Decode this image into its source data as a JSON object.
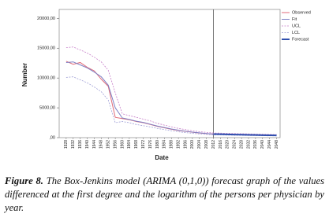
{
  "chart_data": {
    "type": "line",
    "x_label": "Date",
    "y_label": "Number",
    "x": [
      1928,
      1932,
      1936,
      1940,
      1944,
      1948,
      1952,
      1956,
      1960,
      1964,
      1968,
      1972,
      1976,
      1980,
      1984,
      1988,
      1992,
      1996,
      2000,
      2004,
      2008,
      2012,
      2016,
      2020,
      2024,
      2028,
      2032,
      2036,
      2040,
      2044,
      2048
    ],
    "series": [
      {
        "name": "Observed",
        "color": "#e06a78",
        "width": 1,
        "style": "solid",
        "values": [
          12800,
          12300,
          12600,
          11800,
          11200,
          9800,
          8600,
          3400,
          3200,
          3000,
          2700,
          2500,
          2200,
          1900,
          1650,
          1400,
          1200,
          1050,
          900,
          780,
          680,
          600,
          null,
          null,
          null,
          null,
          null,
          null,
          null,
          null,
          null
        ]
      },
      {
        "name": "Fit",
        "color": "#7d7fc4",
        "width": 1,
        "style": "solid",
        "values": [
          12600,
          12700,
          12200,
          11700,
          11000,
          10200,
          8800,
          5000,
          3300,
          3050,
          2750,
          2550,
          2250,
          1950,
          1700,
          1450,
          1250,
          1080,
          920,
          800,
          700,
          610,
          null,
          null,
          null,
          null,
          null,
          null,
          null,
          null,
          null
        ]
      },
      {
        "name": "UCL",
        "color": "#c77fc9",
        "width": 0.8,
        "style": "dashed",
        "values": [
          15100,
          15200,
          14700,
          14200,
          13500,
          12700,
          11300,
          7500,
          4000,
          3700,
          3400,
          3100,
          2800,
          2400,
          2100,
          1800,
          1550,
          1350,
          1150,
          1000,
          880,
          780,
          760,
          720,
          690,
          660,
          630,
          600,
          570,
          540,
          520
        ]
      },
      {
        "name": "LCL",
        "color": "#9f9fd6",
        "width": 0.8,
        "style": "dashed",
        "values": [
          10100,
          10200,
          9700,
          9200,
          8500,
          7700,
          6300,
          2500,
          2700,
          2500,
          2200,
          2000,
          1800,
          1550,
          1350,
          1150,
          980,
          850,
          720,
          620,
          540,
          470,
          450,
          420,
          400,
          380,
          360,
          340,
          320,
          300,
          290
        ]
      },
      {
        "name": "Forecast",
        "color": "#2f4fae",
        "width": 2,
        "style": "solid",
        "values": [
          null,
          null,
          null,
          null,
          null,
          null,
          null,
          null,
          null,
          null,
          null,
          null,
          null,
          null,
          null,
          null,
          null,
          null,
          null,
          null,
          null,
          600,
          570,
          540,
          515,
          490,
          465,
          440,
          420,
          400,
          380
        ]
      }
    ],
    "xlim": [
      1924,
      2050
    ],
    "xticks": [
      1928,
      1932,
      1936,
      1940,
      1944,
      1948,
      1952,
      1956,
      1960,
      1964,
      1968,
      1972,
      1976,
      1980,
      1984,
      1988,
      1992,
      1996,
      2000,
      2004,
      2008,
      2012,
      2016,
      2020,
      2024,
      2028,
      2032,
      2036,
      2040,
      2044,
      2048
    ],
    "ylim": [
      0,
      21500
    ],
    "yticks": [
      {
        "value": 0,
        "label": ",00"
      },
      {
        "value": 5000,
        "label": "5000,00"
      },
      {
        "value": 10000,
        "label": "10000,00"
      },
      {
        "value": 15000,
        "label": "15000,00"
      },
      {
        "value": 20000,
        "label": "20000,00"
      }
    ],
    "reference_line_x": 2012,
    "legend": "top-right",
    "grid": false
  },
  "figure": {
    "label": "Figure 8.",
    "text": "The Box-Jenkins model (ARIMA (0,1,0)) forecast graph of the values differenced at the first degree and the logarithm of the persons per physician by year."
  }
}
